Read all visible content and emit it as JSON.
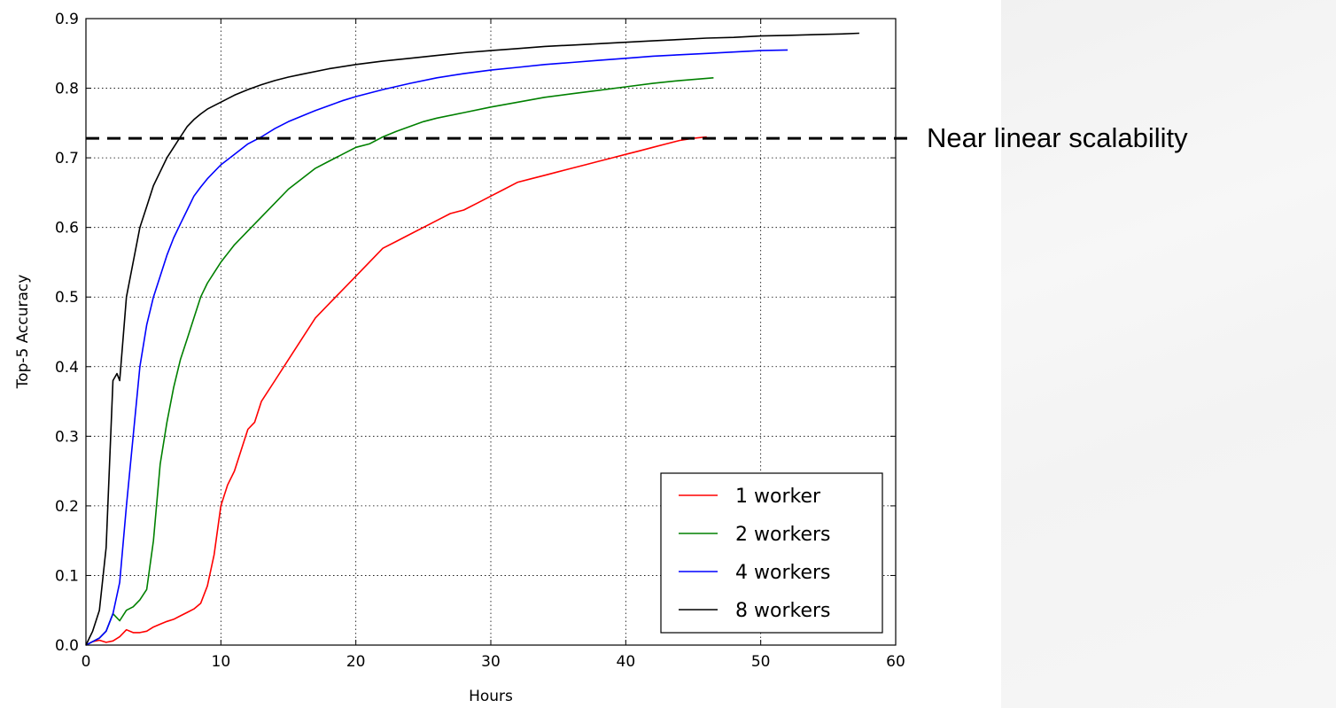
{
  "chart_data": {
    "type": "line",
    "title": "",
    "xlabel": "Hours",
    "ylabel": "Top-5 Accuracy",
    "xlim": [
      0,
      60
    ],
    "ylim": [
      0.0,
      0.9
    ],
    "xticks": [
      "0",
      "10",
      "20",
      "30",
      "40",
      "50",
      "60"
    ],
    "yticks": [
      "0.0",
      "0.1",
      "0.2",
      "0.3",
      "0.4",
      "0.5",
      "0.6",
      "0.7",
      "0.8",
      "0.9"
    ],
    "grid": true,
    "legend_position": "lower-right",
    "series": [
      {
        "name": "1 worker",
        "color": "#ff0000",
        "x": [
          0,
          0.5,
          1,
          1.5,
          2,
          2.5,
          3,
          3.5,
          4,
          4.5,
          5,
          5.5,
          6,
          6.5,
          7,
          7.5,
          8,
          8.5,
          9,
          9.5,
          10,
          10.5,
          11,
          11.5,
          12,
          12.5,
          13,
          14,
          15,
          16,
          17,
          18,
          19,
          20,
          21,
          22,
          23,
          24,
          25,
          26,
          27,
          28,
          29,
          30,
          31,
          32,
          33,
          34,
          35,
          36,
          37,
          38,
          39,
          40,
          41,
          42,
          43,
          44,
          45,
          46
        ],
        "y": [
          0.0,
          0.005,
          0.007,
          0.004,
          0.006,
          0.012,
          0.022,
          0.018,
          0.018,
          0.02,
          0.026,
          0.03,
          0.034,
          0.037,
          0.042,
          0.047,
          0.052,
          0.06,
          0.085,
          0.13,
          0.2,
          0.23,
          0.25,
          0.28,
          0.31,
          0.32,
          0.35,
          0.38,
          0.41,
          0.44,
          0.47,
          0.49,
          0.51,
          0.53,
          0.55,
          0.57,
          0.58,
          0.59,
          0.6,
          0.61,
          0.62,
          0.625,
          0.635,
          0.645,
          0.655,
          0.665,
          0.67,
          0.675,
          0.68,
          0.685,
          0.69,
          0.695,
          0.7,
          0.705,
          0.71,
          0.715,
          0.72,
          0.725,
          0.728,
          0.73
        ]
      },
      {
        "name": "2 workers",
        "color": "#008000",
        "x": [
          0,
          0.5,
          1,
          1.5,
          2,
          2.5,
          3,
          3.5,
          4,
          4.5,
          5,
          5.5,
          6,
          6.5,
          7,
          7.5,
          8,
          8.5,
          9,
          9.5,
          10,
          11,
          12,
          13,
          14,
          15,
          16,
          17,
          18,
          19,
          20,
          21,
          22,
          23,
          24,
          25,
          26,
          28,
          30,
          32,
          34,
          36,
          38,
          40,
          42,
          44,
          46.5
        ],
        "y": [
          0.0,
          0.005,
          0.01,
          0.02,
          0.045,
          0.035,
          0.05,
          0.055,
          0.065,
          0.08,
          0.15,
          0.26,
          0.32,
          0.37,
          0.41,
          0.44,
          0.47,
          0.5,
          0.52,
          0.535,
          0.55,
          0.575,
          0.595,
          0.615,
          0.635,
          0.655,
          0.67,
          0.685,
          0.695,
          0.705,
          0.715,
          0.72,
          0.73,
          0.738,
          0.745,
          0.752,
          0.757,
          0.765,
          0.773,
          0.78,
          0.787,
          0.792,
          0.797,
          0.802,
          0.807,
          0.811,
          0.815
        ]
      },
      {
        "name": "4 workers",
        "color": "#0000ff",
        "x": [
          0,
          0.5,
          1,
          1.5,
          2,
          2.5,
          3,
          3.5,
          4,
          4.5,
          5,
          5.5,
          6,
          6.5,
          7,
          7.5,
          8,
          8.5,
          9,
          10,
          11,
          12,
          13,
          14,
          15,
          16,
          17,
          18,
          19,
          20,
          22,
          24,
          26,
          28,
          30,
          32,
          34,
          36,
          38,
          40,
          42,
          44,
          46,
          48,
          50,
          52
        ],
        "y": [
          0.0,
          0.005,
          0.01,
          0.02,
          0.045,
          0.09,
          0.2,
          0.3,
          0.4,
          0.46,
          0.5,
          0.53,
          0.56,
          0.585,
          0.605,
          0.625,
          0.645,
          0.658,
          0.67,
          0.69,
          0.705,
          0.72,
          0.73,
          0.742,
          0.752,
          0.76,
          0.768,
          0.775,
          0.782,
          0.788,
          0.798,
          0.807,
          0.815,
          0.821,
          0.826,
          0.83,
          0.834,
          0.837,
          0.84,
          0.843,
          0.846,
          0.848,
          0.85,
          0.852,
          0.854,
          0.855
        ]
      },
      {
        "name": "8 workers",
        "color": "#000000",
        "x": [
          0,
          0.5,
          1,
          1.5,
          2,
          2.3,
          2.5,
          3,
          3.5,
          4,
          4.5,
          5,
          5.5,
          6,
          6.5,
          7,
          7.5,
          8,
          8.5,
          9,
          10,
          11,
          12,
          13,
          14,
          15,
          16,
          18,
          20,
          22,
          24,
          26,
          28,
          30,
          32,
          34,
          36,
          38,
          40,
          42,
          44,
          46,
          48,
          50,
          52,
          54,
          56,
          57.3
        ],
        "y": [
          0.0,
          0.02,
          0.05,
          0.14,
          0.38,
          0.39,
          0.38,
          0.5,
          0.55,
          0.6,
          0.63,
          0.66,
          0.68,
          0.7,
          0.715,
          0.73,
          0.745,
          0.755,
          0.763,
          0.77,
          0.78,
          0.79,
          0.798,
          0.805,
          0.811,
          0.816,
          0.82,
          0.828,
          0.834,
          0.839,
          0.843,
          0.847,
          0.851,
          0.854,
          0.857,
          0.86,
          0.862,
          0.864,
          0.866,
          0.868,
          0.87,
          0.872,
          0.873,
          0.875,
          0.876,
          0.877,
          0.878,
          0.879
        ]
      }
    ],
    "reference_line": {
      "y": 0.728,
      "style": "dashed",
      "color": "#000000",
      "label": "Near linear scalability"
    }
  }
}
